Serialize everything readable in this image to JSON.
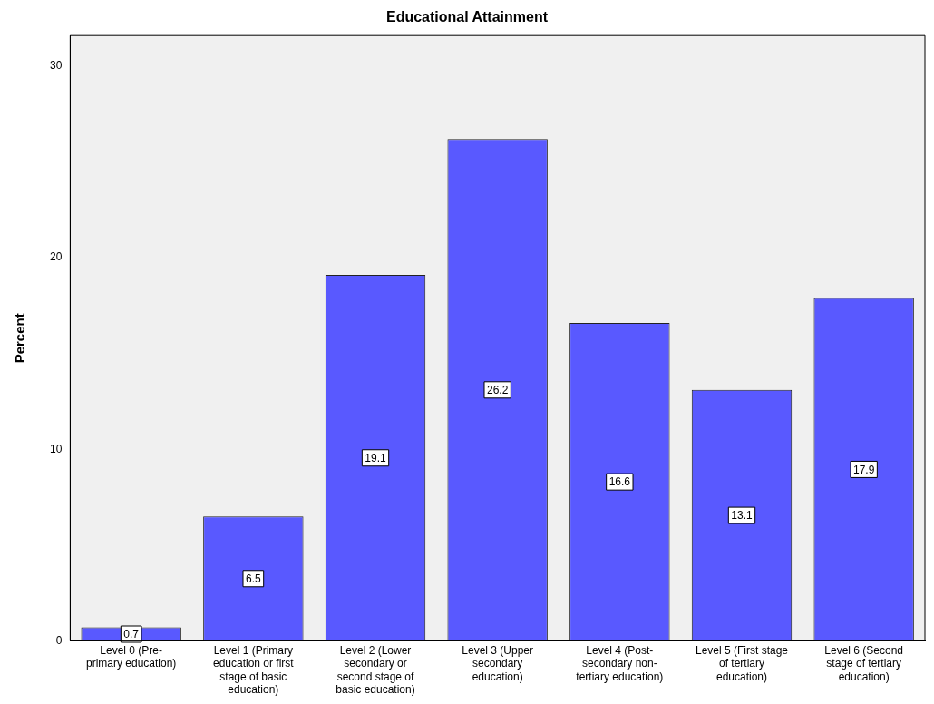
{
  "chart_data": {
    "type": "bar",
    "title": "Educational Attainment",
    "ylabel": "Percent",
    "categories": [
      "Level 0 (Pre-primary education)",
      "Level 1 (Primary education or first stage of basic education)",
      "Level 2 (Lower secondary or second stage of basic education)",
      "Level 3 (Upper secondary education)",
      "Level 4 (Post-secondary non-tertiary education)",
      "Level 5 (First stage of tertiary education)",
      "Level 6 (Second stage of tertiary education)"
    ],
    "values": [
      0.7,
      6.5,
      19.1,
      26.2,
      16.6,
      13.1,
      17.9
    ],
    "color": "#5959ff",
    "ylim": [
      0,
      31.6
    ],
    "yticks": [
      0,
      10,
      20,
      30
    ],
    "grid": false,
    "legend": false,
    "data_labels": true
  }
}
